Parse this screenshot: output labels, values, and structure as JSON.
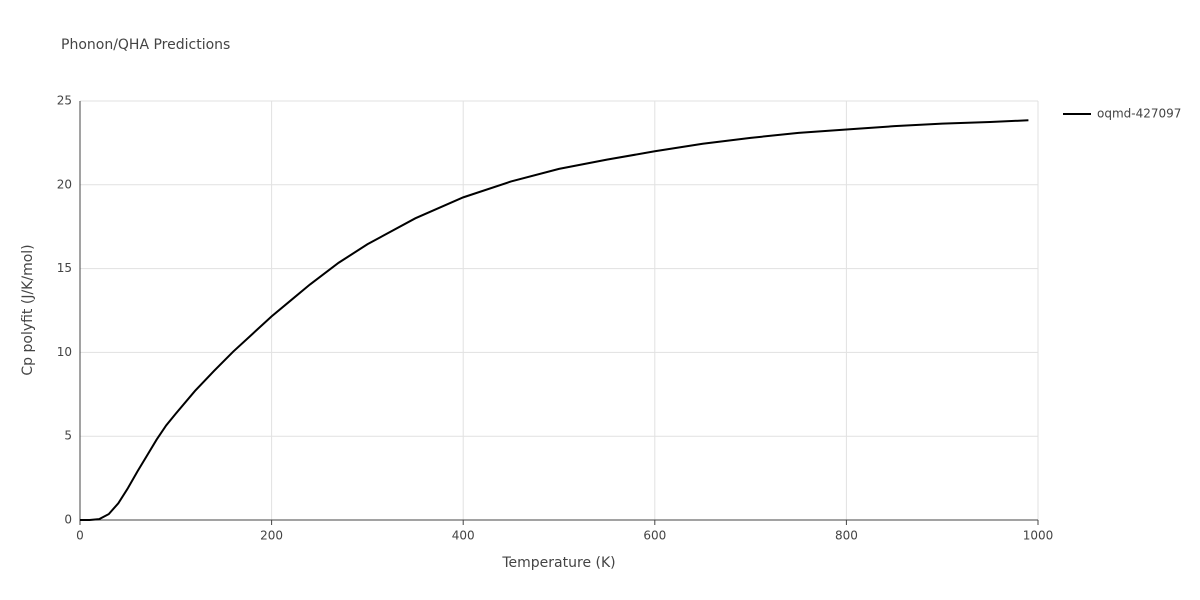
{
  "chart_data": {
    "type": "line",
    "title": "Phonon/QHA Predictions",
    "x_label": "Temperature (K)",
    "y_label": "Cp polyfit (J/K/mol)",
    "xlim": [
      0,
      1000
    ],
    "ylim": [
      0,
      25
    ],
    "xticks": [
      0,
      200,
      400,
      600,
      800,
      1000
    ],
    "yticks": [
      0,
      5,
      10,
      15,
      20,
      25
    ],
    "grid": true,
    "legend": "right",
    "x": [
      0,
      10,
      20,
      30,
      40,
      50,
      60,
      70,
      80,
      90,
      100,
      120,
      140,
      160,
      180,
      200,
      220,
      240,
      270,
      300,
      350,
      400,
      450,
      500,
      550,
      600,
      650,
      700,
      750,
      800,
      850,
      900,
      950,
      990
    ],
    "series": [
      {
        "name": "oqmd-427097",
        "color": "#000000",
        "values": [
          0,
          0,
          0.05,
          0.35,
          1.0,
          1.9,
          2.9,
          3.85,
          4.8,
          5.65,
          6.35,
          7.7,
          8.9,
          10.05,
          11.1,
          12.15,
          13.1,
          14.05,
          15.35,
          16.45,
          18.0,
          19.25,
          20.2,
          20.95,
          21.5,
          22.0,
          22.45,
          22.8,
          23.1,
          23.3,
          23.5,
          23.65,
          23.75,
          23.85
        ]
      }
    ]
  }
}
